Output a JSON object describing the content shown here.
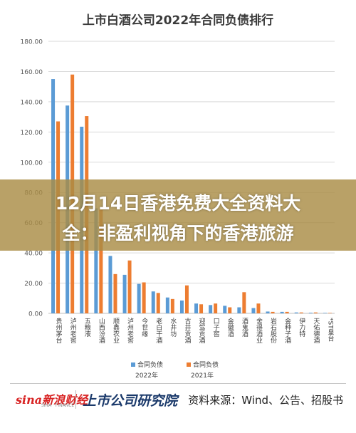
{
  "chart_data": {
    "type": "bar",
    "title": "上市白酒公司2022年合同负债排行",
    "categories": [
      "贵州茅台",
      "泸州老窖",
      "五粮液",
      "山西汾酒",
      "顺鑫农业",
      "泸州老窖",
      "今世缘",
      "老白干酒",
      "水井坊",
      "古井贡酒",
      "迎驾贡酒",
      "口子窖",
      "金徽酒",
      "酒鬼酒",
      "舍得酒业",
      "岩石股份",
      "金种子酒",
      "伊力特",
      "天佑德酒",
      "*ST皇台"
    ],
    "series": [
      {
        "name": "合同负债 2022年",
        "color": "#5b9bd5",
        "values": [
          155.0,
          137.5,
          123.5,
          69.5,
          38.0,
          25.5,
          19.5,
          14.5,
          10.5,
          8.5,
          6.5,
          5.5,
          5.0,
          4.0,
          3.5,
          1.2,
          1.0,
          0.6,
          0.4,
          0.3
        ]
      },
      {
        "name": "合同负债 2021年",
        "color": "#ed7d31",
        "values": [
          127.0,
          158.0,
          130.5,
          68.5,
          26.0,
          35.0,
          20.5,
          13.5,
          9.5,
          18.5,
          6.0,
          6.5,
          4.0,
          14.0,
          6.5,
          1.0,
          1.0,
          0.6,
          0.6,
          0.3
        ]
      }
    ],
    "legend": [
      {
        "label": "合同负债",
        "year": "2022年"
      },
      {
        "label": "合同负债",
        "year": "2021年"
      }
    ],
    "y_ticks": [
      "0.00",
      "20.00",
      "40.00",
      "60.00",
      "80.00",
      "100.00",
      "120.00",
      "140.00",
      "160.00",
      "180.00"
    ],
    "ylim": [
      0,
      180
    ],
    "grid": true,
    "legend_position": "bottom"
  },
  "overlay": {
    "line1": "12月14日香港免费大全资料大",
    "line2": "全：非盈利视角下的香港旅游"
  },
  "footer": {
    "sina_logo": "sina新浪财经",
    "sina_sub": "SINA · FINANCE",
    "publisher_logo": "上市公司研究院",
    "source": "资料来源：Wind、公告、招股书"
  }
}
